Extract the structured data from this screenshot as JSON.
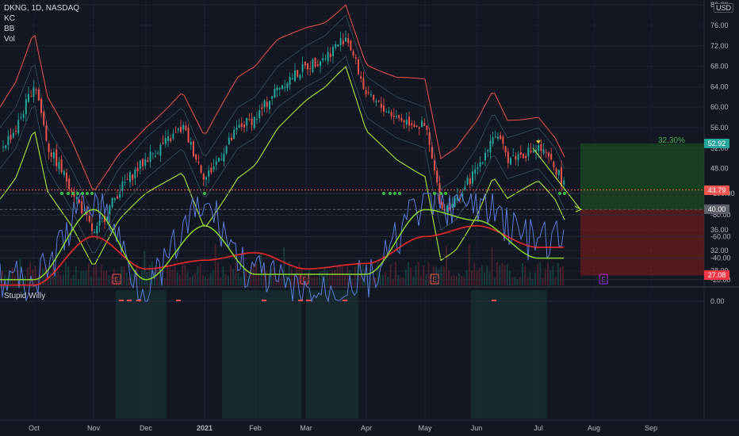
{
  "header": {
    "symbol_line": "DKNG, 1D, NASDAQ",
    "indicators": [
      "KC",
      "BB",
      "Vol"
    ],
    "currency": "USD"
  },
  "sub_pane": {
    "title": "Stupid Willy",
    "y_ticks": [
      "0.00",
      "-20.00",
      "-40.00",
      "-60.00",
      "-80.00",
      "-100.00"
    ]
  },
  "price_axis": {
    "ticks": [
      "80.00",
      "76.00",
      "72.00",
      "68.00",
      "64.00",
      "60.00",
      "56.00",
      "52.00",
      "48.00",
      "44.00",
      "40.00",
      "36.00",
      "32.00",
      "28.00"
    ]
  },
  "price_labels": {
    "target": "52.92",
    "last": "43.79",
    "entry": "40.00",
    "stop": "27.08",
    "target_pct": "32.30%"
  },
  "time_axis": {
    "labels": [
      "Oct",
      "Nov",
      "Dec",
      "2021",
      "Feb",
      "Mar",
      "Apr",
      "May",
      "Jun",
      "Jul",
      "Aug",
      "Sep"
    ]
  },
  "earnings_marker": "E",
  "colors": {
    "background": "#131722",
    "up": "#26a69a",
    "down": "#ef5350",
    "kc_upper": "#ef5350",
    "bb_lower": "#a5d63f",
    "willy_fast": "#5b7bd5",
    "willy_slow": "#ff2a2a",
    "willy_signal": "#8bd42e",
    "target_zone": "#1b5e20",
    "stop_zone": "#7f1d1d"
  },
  "chart_data": {
    "type": "candlestick",
    "title": "DKNG, 1D, NASDAQ",
    "xlabel": "",
    "ylabel": "",
    "ylim": [
      27,
      80
    ],
    "x": [
      "Oct",
      "Nov",
      "Dec",
      "2021",
      "Feb",
      "Mar",
      "Apr",
      "May",
      "Jun",
      "Jul",
      "Aug",
      "Sep"
    ],
    "series": [
      {
        "name": "Close (approx., per month tick)",
        "values": [
          62.0,
          36.0,
          48.0,
          52.0,
          56.0,
          66.0,
          60.0,
          40.0,
          52.0,
          50.0,
          null,
          null
        ]
      }
    ],
    "annotations": [
      {
        "label": "52.92",
        "value": 52.92
      },
      {
        "label": "43.79",
        "value": 43.79
      },
      {
        "label": "40.00",
        "value": 40.0
      },
      {
        "label": "27.08",
        "value": 27.08
      },
      {
        "label": "32.30%",
        "value": 32.3
      }
    ],
    "sub_chart": {
      "name": "Stupid Willy",
      "ylim": [
        -100,
        0
      ],
      "fast_line_x": [
        "Oct",
        "Nov",
        "Dec",
        "2021",
        "Feb",
        "Mar",
        "Apr",
        "May",
        "Jun",
        "Jul"
      ],
      "fast_line_values": [
        -20,
        -95,
        -15,
        -85,
        -25,
        -5,
        -20,
        -90,
        -90,
        -55
      ],
      "slow_line_values": [
        -15,
        -60,
        -30,
        -38,
        -45,
        -30,
        -35,
        -60,
        -70,
        -50
      ],
      "signal_line_values": [
        -20,
        -85,
        -20,
        -70,
        -25,
        -25,
        -25,
        -85,
        -75,
        -40
      ]
    }
  }
}
